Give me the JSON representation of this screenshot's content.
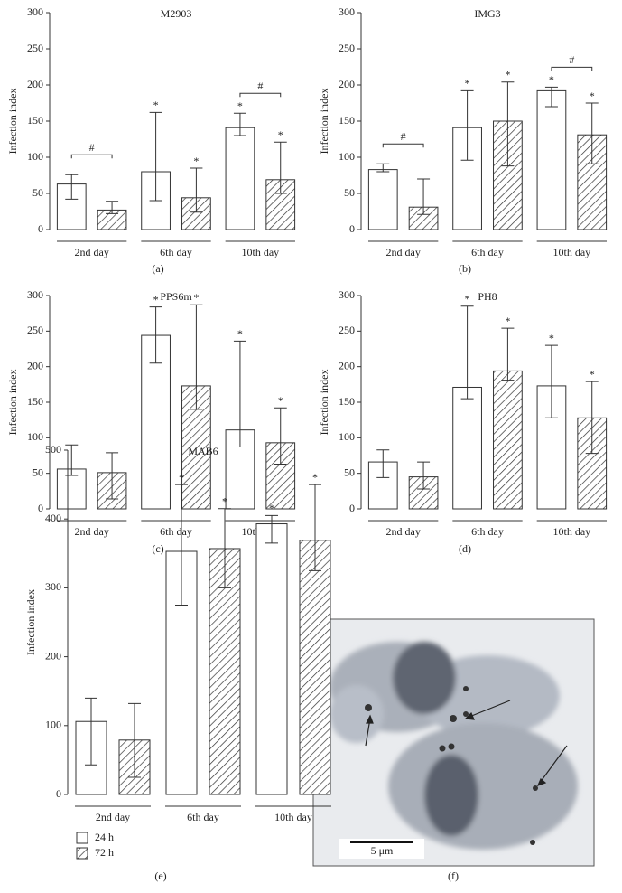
{
  "chart_data": [
    {
      "type": "bar",
      "title": "M2903",
      "panel_label": "(a)",
      "y_label": "Infection index",
      "categories": [
        "2nd day",
        "6th day",
        "10th day"
      ],
      "series": [
        {
          "name": "24 h",
          "color": "#ffffff",
          "hatch": false,
          "values": [
            63,
            80,
            141
          ],
          "lower": [
            42,
            40,
            130
          ],
          "upper": [
            76,
            162,
            161
          ],
          "significance": [
            null,
            "*",
            "*"
          ]
        },
        {
          "name": "72 h",
          "color": "#ffffff",
          "hatch": true,
          "values": [
            27,
            44,
            69
          ],
          "lower": [
            22,
            24,
            50
          ],
          "upper": [
            39,
            85,
            121
          ],
          "significance": [
            null,
            "*",
            "*"
          ]
        }
      ],
      "comparisons": [
        {
          "category": 0,
          "label": "#"
        },
        {
          "category": 2,
          "label": "#"
        }
      ],
      "ylim": [
        0,
        300
      ],
      "yticks": [
        0,
        50,
        100,
        150,
        200,
        250,
        300
      ],
      "legend": false
    },
    {
      "type": "bar",
      "title": "IMG3",
      "panel_label": "(b)",
      "y_label": "Infection index",
      "categories": [
        "2nd day",
        "6th day",
        "10th day"
      ],
      "series": [
        {
          "name": "24 h",
          "color": "#ffffff",
          "hatch": false,
          "values": [
            83,
            141,
            192
          ],
          "lower": [
            80,
            96,
            170
          ],
          "upper": [
            91,
            192,
            197
          ],
          "significance": [
            null,
            "*",
            "*"
          ]
        },
        {
          "name": "72 h",
          "color": "#ffffff",
          "hatch": true,
          "values": [
            31,
            150,
            131
          ],
          "lower": [
            21,
            88,
            91
          ],
          "upper": [
            70,
            204,
            175
          ],
          "significance": [
            null,
            "*",
            "*"
          ]
        }
      ],
      "comparisons": [
        {
          "category": 0,
          "label": "#"
        },
        {
          "category": 2,
          "label": "#"
        }
      ],
      "ylim": [
        0,
        300
      ],
      "yticks": [
        0,
        50,
        100,
        150,
        200,
        250,
        300
      ],
      "legend": false
    },
    {
      "type": "bar",
      "title": "PPS6m",
      "panel_label": "(c)",
      "y_label": "Infection index",
      "categories": [
        "2nd day",
        "6th day",
        "10th day"
      ],
      "series": [
        {
          "name": "24 h",
          "color": "#ffffff",
          "hatch": false,
          "values": [
            56,
            244,
            111
          ],
          "lower": [
            47,
            205,
            87
          ],
          "upper": [
            90,
            284,
            236
          ],
          "significance": [
            null,
            "*",
            "*"
          ]
        },
        {
          "name": "72 h",
          "color": "#ffffff",
          "hatch": true,
          "values": [
            51,
            173,
            93
          ],
          "lower": [
            14,
            140,
            63
          ],
          "upper": [
            79,
            287,
            142
          ],
          "significance": [
            null,
            "*",
            "*"
          ]
        }
      ],
      "comparisons": [],
      "ylim": [
        0,
        300
      ],
      "yticks": [
        0,
        50,
        100,
        150,
        200,
        250,
        300
      ],
      "legend": false
    },
    {
      "type": "bar",
      "title": "PH8",
      "panel_label": "(d)",
      "y_label": "Infection index",
      "categories": [
        "2nd day",
        "6th day",
        "10th day"
      ],
      "series": [
        {
          "name": "24 h",
          "color": "#ffffff",
          "hatch": false,
          "values": [
            66,
            171,
            173
          ],
          "lower": [
            44,
            155,
            128
          ],
          "upper": [
            83,
            285,
            230
          ],
          "significance": [
            null,
            "*",
            "*"
          ]
        },
        {
          "name": "72 h",
          "color": "#ffffff",
          "hatch": true,
          "values": [
            45,
            194,
            128
          ],
          "lower": [
            28,
            181,
            78
          ],
          "upper": [
            66,
            254,
            179
          ],
          "significance": [
            null,
            "*",
            "*"
          ]
        }
      ],
      "comparisons": [],
      "ylim": [
        0,
        300
      ],
      "yticks": [
        0,
        50,
        100,
        150,
        200,
        250,
        300
      ],
      "legend": false
    },
    {
      "type": "bar",
      "title": "MAB6",
      "panel_label": "(e)",
      "y_label": "Infection index",
      "categories": [
        "2nd day",
        "6th day",
        "10th day"
      ],
      "series": [
        {
          "name": "24 h",
          "color": "#ffffff",
          "hatch": false,
          "values": [
            106,
            353,
            393
          ],
          "lower": [
            43,
            275,
            365
          ],
          "upper": [
            140,
            450,
            405
          ],
          "significance": [
            null,
            "*",
            "*"
          ]
        },
        {
          "name": "72 h",
          "color": "#ffffff",
          "hatch": true,
          "values": [
            79,
            357,
            369
          ],
          "lower": [
            25,
            300,
            325
          ],
          "upper": [
            132,
            415,
            450
          ],
          "significance": [
            null,
            "*",
            "*"
          ]
        }
      ],
      "comparisons": [],
      "ylim": [
        0,
        500
      ],
      "yticks": [
        0,
        100,
        200,
        300,
        400,
        500
      ],
      "legend": true
    }
  ],
  "image_panel": {
    "scale_bar": "5 μm",
    "panel_label": "(f)"
  }
}
